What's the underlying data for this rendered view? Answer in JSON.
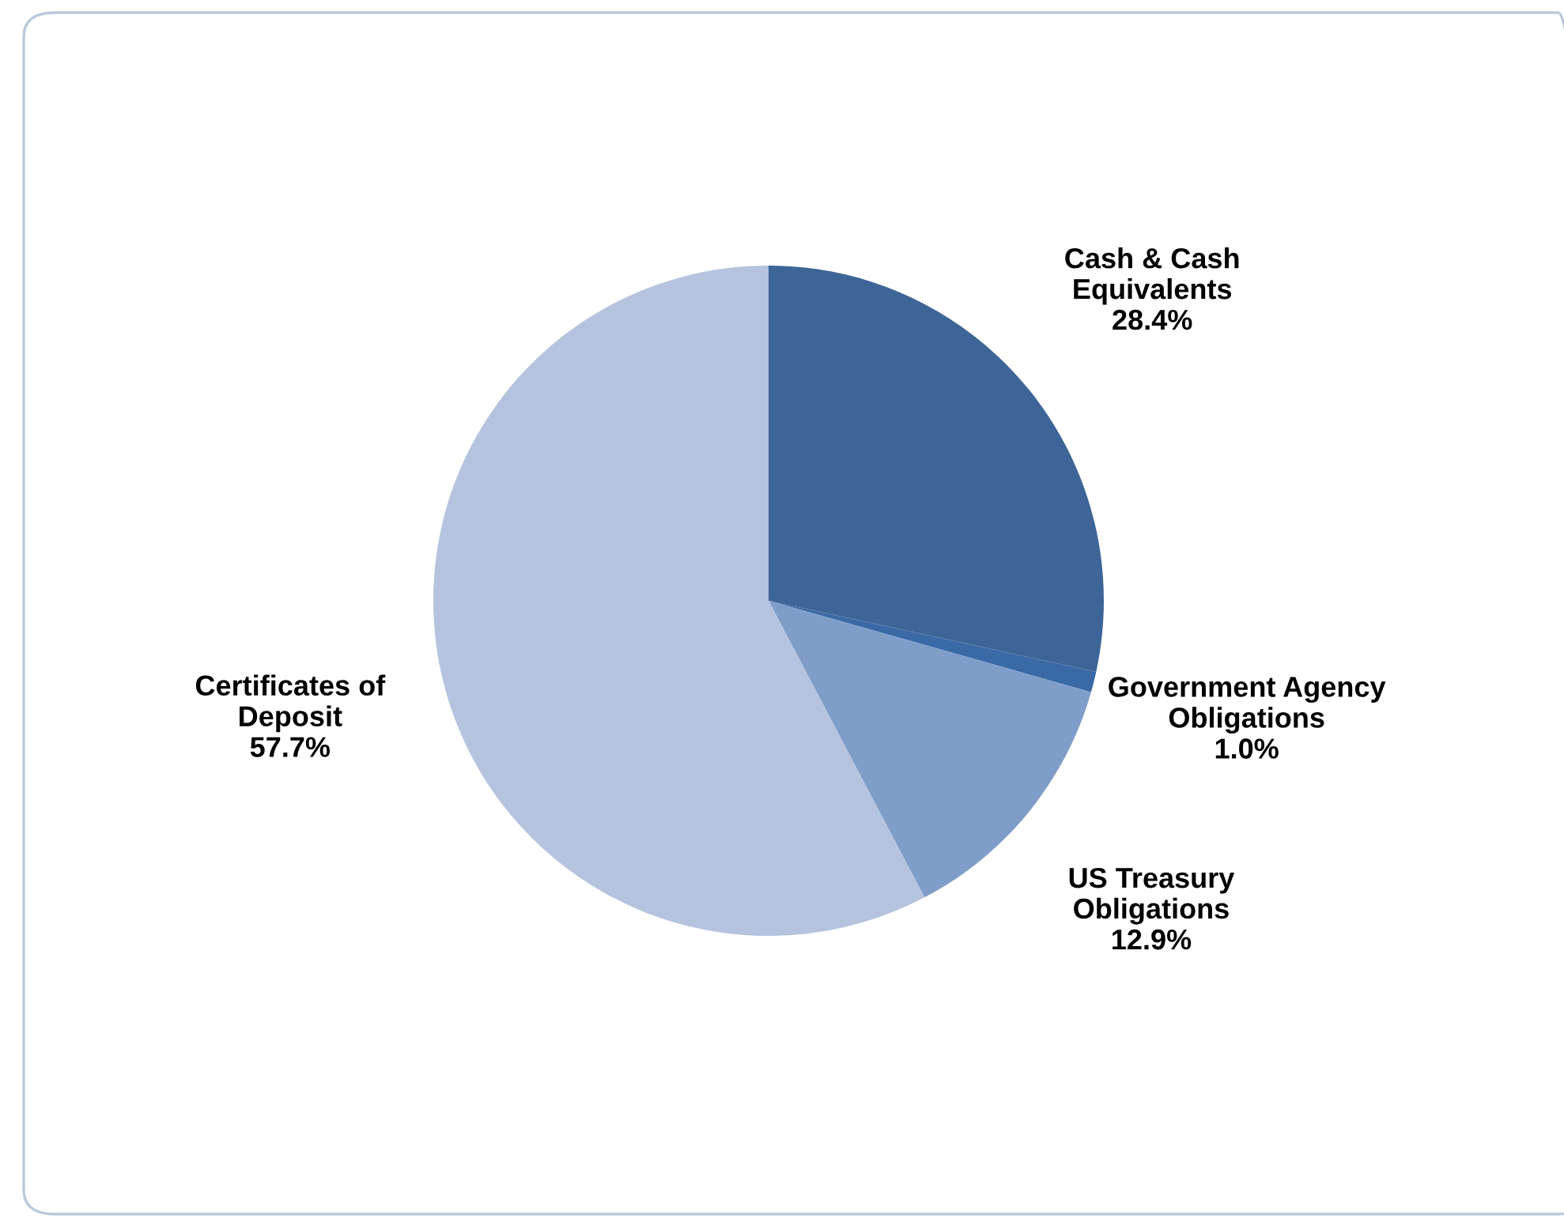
{
  "chart_data": {
    "type": "pie",
    "categories": [
      "Cash & Cash\nEquivalents",
      "Government Agency\nObligations",
      "US Treasury\nObligations",
      "Certificates of\nDeposit"
    ],
    "values": [
      28.4,
      1.0,
      12.9,
      57.7
    ],
    "value_labels": [
      "28.4%",
      "1.0%",
      "12.9%",
      "57.7%"
    ],
    "colors": [
      "#3d6597",
      "#3a6aa6",
      "#7f9dc9",
      "#b5c3de"
    ],
    "legend": false
  }
}
